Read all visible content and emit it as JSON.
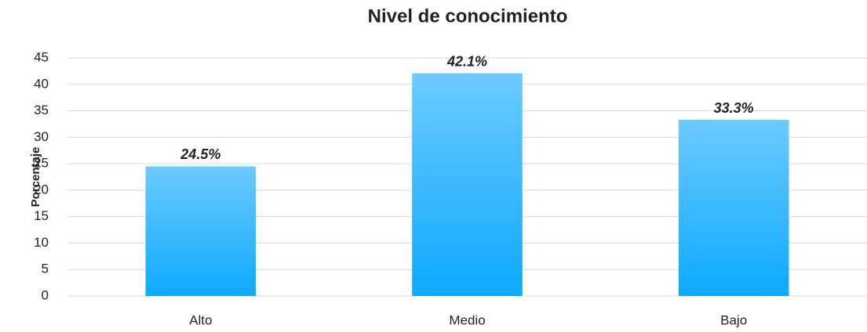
{
  "chart_data": {
    "type": "bar",
    "title": "Nivel de conocimiento",
    "ylabel": "Porcentaje",
    "categories": [
      "Alto",
      "Medio",
      "Bajo"
    ],
    "values": [
      24.5,
      42.1,
      33.3
    ],
    "value_labels": [
      "24.5%",
      "42.1%",
      "33.3%"
    ],
    "colors": [
      "#6ccaff",
      "#0ea9fe"
    ],
    "ylim": [
      0,
      45
    ],
    "yticks": [
      0,
      5,
      10,
      15,
      20,
      25,
      30,
      35,
      40,
      45
    ],
    "grid": true
  }
}
